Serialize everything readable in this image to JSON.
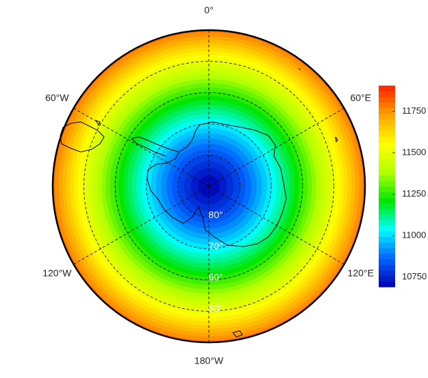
{
  "map": {
    "projection": "south-polar-stereographic",
    "boundary_lat": 40,
    "meridians": [
      {
        "value": 0,
        "label": "0°"
      },
      {
        "value": 60,
        "label": "60°E"
      },
      {
        "value": 120,
        "label": "120°E"
      },
      {
        "value": 180,
        "label": "180°W"
      },
      {
        "value": -120,
        "label": "120°W"
      },
      {
        "value": -60,
        "label": "60°W"
      }
    ],
    "parallels": [
      {
        "value": 80,
        "label": "80°"
      },
      {
        "value": 70,
        "label": "70°"
      },
      {
        "value": 60,
        "label": "60°"
      },
      {
        "value": 50,
        "label": "50°"
      }
    ],
    "colorbar": {
      "lim": [
        10690,
        11905
      ],
      "ticks": [
        10750,
        11000,
        11250,
        11500,
        11750
      ],
      "colormap": [
        "#0000b4",
        "#0064ff",
        "#00ffff",
        "#00e600",
        "#b4ff00",
        "#ffff00",
        "#ffa000",
        "#ff2000"
      ]
    }
  }
}
